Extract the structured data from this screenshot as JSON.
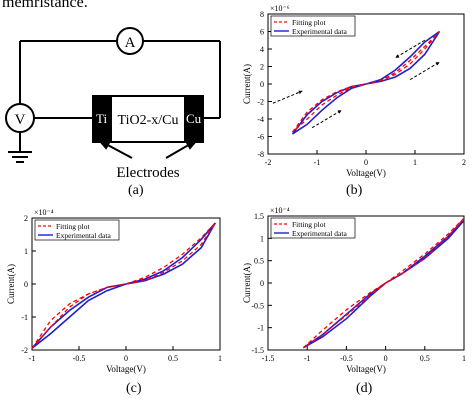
{
  "header_fragment": "memristance.",
  "panel_a": {
    "caption": "(a)",
    "ammeter": "A",
    "voltmeter": "V",
    "left_electrode": "Ti",
    "right_electrode": "Cu",
    "device": "TiO2-x/Cu",
    "electrodes_label": "Electrodes"
  },
  "legend": {
    "fit": "Fitting plot",
    "exp": "Experimental data"
  },
  "chart_data": [
    {
      "panel": "(b)",
      "type": "line",
      "xlabel": "Voltage(V)",
      "ylabel": "Current(A)",
      "multiplier": "×10⁻⁶",
      "xlim": [
        -2,
        2
      ],
      "ylim": [
        -8,
        8
      ],
      "xticks": [
        -2,
        -1,
        0,
        1,
        2
      ],
      "yticks": [
        8,
        6,
        4,
        2,
        0,
        -2,
        -4,
        -6,
        -8
      ],
      "legend_position": "top-left",
      "series": [
        {
          "name": "Fitting plot",
          "style": "dashed",
          "color": "#ff0000",
          "x": [
            -1.5,
            -1.2,
            -0.9,
            -0.6,
            -0.3,
            0,
            0.3,
            0.6,
            0.9,
            1.2,
            1.5,
            1.2,
            0.9,
            0.6,
            0.3,
            0,
            -0.3,
            -0.6,
            -0.9,
            -1.2,
            -1.5
          ],
          "y": [
            -5.5,
            -3.2,
            -1.8,
            -0.9,
            -0.3,
            0,
            0.4,
            1.1,
            2.3,
            4.0,
            6.0,
            4.3,
            2.7,
            1.3,
            0.4,
            0,
            -0.4,
            -1.3,
            -2.4,
            -4.0,
            -5.5
          ]
        },
        {
          "name": "Experimental data",
          "style": "solid",
          "color": "#1f1fd0",
          "x": [
            -1.5,
            -1.2,
            -0.9,
            -0.6,
            -0.3,
            0,
            0.3,
            0.6,
            0.9,
            1.2,
            1.5,
            1.2,
            0.9,
            0.6,
            0.3,
            0,
            -0.3,
            -0.6,
            -0.9,
            -1.2,
            -1.5
          ],
          "y": [
            -5.7,
            -3.5,
            -2.0,
            -1.0,
            -0.3,
            0,
            0.3,
            0.8,
            1.8,
            3.4,
            6.0,
            4.8,
            3.1,
            1.6,
            0.5,
            0,
            -0.5,
            -1.6,
            -3.0,
            -4.6,
            -5.7
          ]
        }
      ]
    },
    {
      "panel": "(c)",
      "type": "line",
      "xlabel": "Voltage(V)",
      "ylabel": "Current(A)",
      "multiplier": "×10⁻⁴",
      "xlim": [
        -1,
        1
      ],
      "ylim": [
        -2,
        2
      ],
      "xticks": [
        -1,
        -0.5,
        0,
        0.5,
        1
      ],
      "yticks": [
        2,
        1,
        0,
        -1,
        -2
      ],
      "legend_position": "top-left",
      "series": [
        {
          "name": "Fitting plot",
          "style": "dashed",
          "color": "#ff0000",
          "x": [
            -1,
            -0.8,
            -0.6,
            -0.4,
            -0.2,
            0,
            0.2,
            0.4,
            0.6,
            0.8,
            0.95,
            0.8,
            0.6,
            0.4,
            0.2,
            0,
            -0.2,
            -0.4,
            -0.6,
            -0.8,
            -1
          ],
          "y": [
            -1.95,
            -1.1,
            -0.6,
            -0.3,
            -0.1,
            0,
            0.2,
            0.5,
            0.9,
            1.4,
            1.85,
            1.2,
            0.7,
            0.35,
            0.1,
            0,
            -0.1,
            -0.3,
            -0.7,
            -1.3,
            -1.95
          ]
        },
        {
          "name": "Experimental data",
          "style": "solid",
          "color": "#1f1fd0",
          "x": [
            -1,
            -0.8,
            -0.6,
            -0.4,
            -0.2,
            0,
            0.2,
            0.4,
            0.6,
            0.8,
            0.95,
            0.8,
            0.6,
            0.4,
            0.2,
            0,
            -0.2,
            -0.4,
            -0.6,
            -0.8,
            -1
          ],
          "y": [
            -1.95,
            -1.3,
            -0.8,
            -0.4,
            -0.1,
            0,
            0.1,
            0.3,
            0.6,
            1.1,
            1.85,
            1.35,
            0.8,
            0.4,
            0.15,
            0,
            -0.2,
            -0.5,
            -1.0,
            -1.5,
            -1.95
          ]
        }
      ]
    },
    {
      "panel": "(d)",
      "type": "line",
      "xlabel": "Voltage(V)",
      "ylabel": "Current(A)",
      "multiplier": "×10⁻⁴",
      "xlim": [
        -1.5,
        1
      ],
      "ylim": [
        -1.5,
        1.5
      ],
      "xticks": [
        -1.5,
        -1,
        -0.5,
        0,
        0.5,
        1
      ],
      "yticks": [
        1.5,
        1,
        0.5,
        0,
        -0.5,
        -1,
        -1.5
      ],
      "legend_position": "top-left",
      "series": [
        {
          "name": "Fitting plot",
          "style": "dashed",
          "color": "#ff0000",
          "x": [
            -1.05,
            -0.8,
            -0.5,
            -0.2,
            0,
            0.2,
            0.5,
            0.8,
            1.0,
            0.8,
            0.5,
            0.2,
            0,
            -0.2,
            -0.5,
            -0.8,
            -1.05
          ],
          "y": [
            -1.45,
            -1.05,
            -0.6,
            -0.22,
            0,
            0.25,
            0.65,
            1.1,
            1.45,
            1.05,
            0.55,
            0.2,
            0,
            -0.28,
            -0.72,
            -1.15,
            -1.45
          ]
        },
        {
          "name": "Experimental data",
          "style": "solid",
          "color": "#1f1fd0",
          "x": [
            -1.05,
            -0.8,
            -0.5,
            -0.2,
            0,
            0.2,
            0.5,
            0.8,
            1.0,
            0.8,
            0.5,
            0.2,
            0,
            -0.2,
            -0.5,
            -0.8,
            -1.05
          ],
          "y": [
            -1.45,
            -1.15,
            -0.7,
            -0.25,
            0,
            0.2,
            0.6,
            1.05,
            1.4,
            1.0,
            0.55,
            0.2,
            0,
            -0.3,
            -0.8,
            -1.2,
            -1.45
          ]
        }
      ]
    }
  ]
}
